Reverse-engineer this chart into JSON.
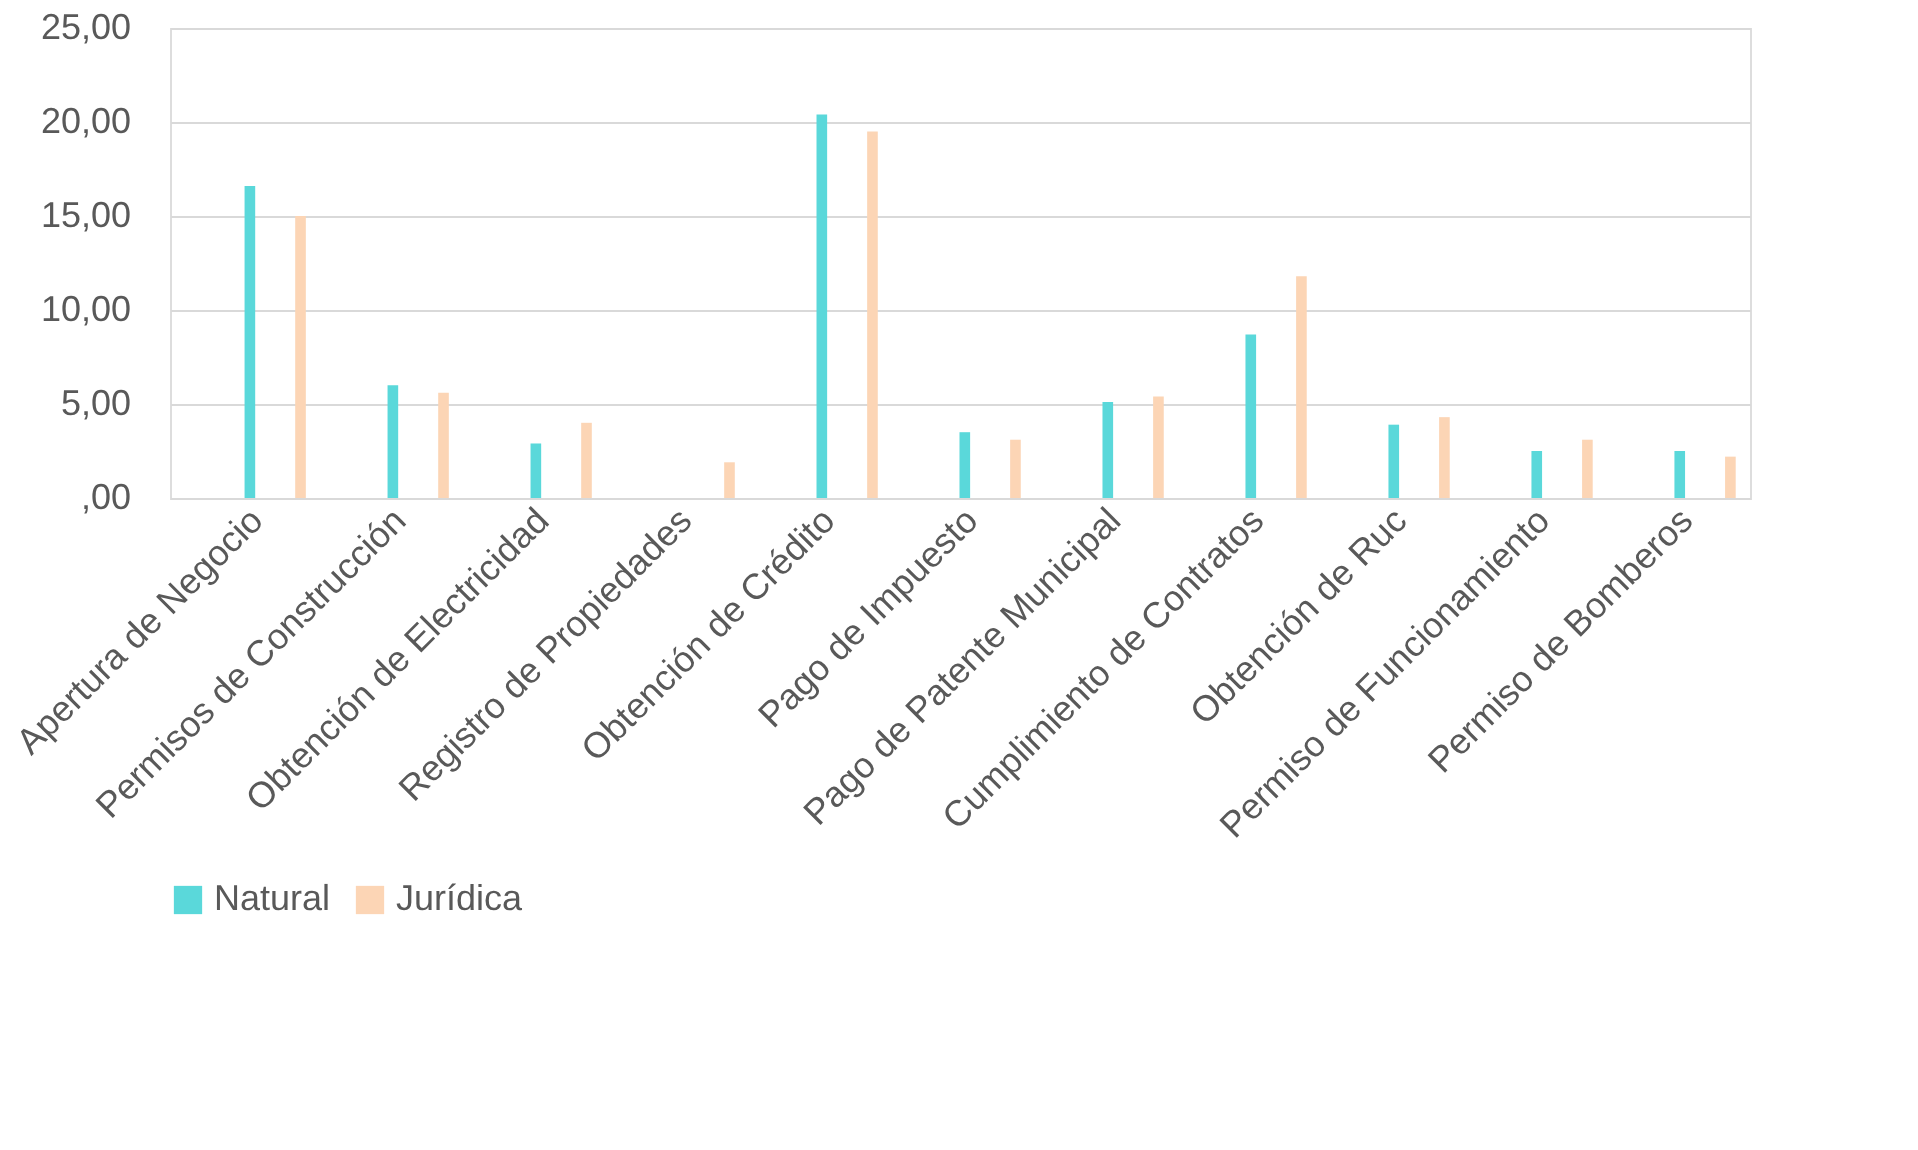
{
  "chart_data": {
    "type": "bar",
    "categories": [
      "Apertura de Negocio",
      "Permisos de Construcción",
      "Obtención de Electricidad",
      "Registro de Propiedades",
      "Obtención de Crédito",
      "Pago de Impuesto",
      "Pago de Patente Municipal",
      "Cumplimiento de Contratos",
      "Obtención de Ruc",
      "Permiso de Funcionamiento",
      "Permiso de Bomberos"
    ],
    "series": [
      {
        "name": "Natural",
        "color": "#5ad8da",
        "values": [
          16.6,
          6.0,
          2.9,
          0,
          20.4,
          3.5,
          5.1,
          8.7,
          3.9,
          2.5,
          2.5
        ]
      },
      {
        "name": "Jurídica",
        "color": "#fcd5b5",
        "values": [
          15.0,
          5.6,
          4.0,
          1.9,
          19.5,
          3.1,
          5.4,
          11.8,
          4.3,
          3.1,
          2.2
        ]
      }
    ],
    "ylim": [
      0,
      25
    ],
    "yticks": [
      {
        "value": 0,
        "label": ",00"
      },
      {
        "value": 5,
        "label": "5,00"
      },
      {
        "value": 10,
        "label": "10,00"
      },
      {
        "value": 15,
        "label": "15,00"
      },
      {
        "value": 20,
        "label": "20,00"
      },
      {
        "value": 25,
        "label": "25,00"
      }
    ],
    "grid": "y",
    "legend": "bottom"
  }
}
